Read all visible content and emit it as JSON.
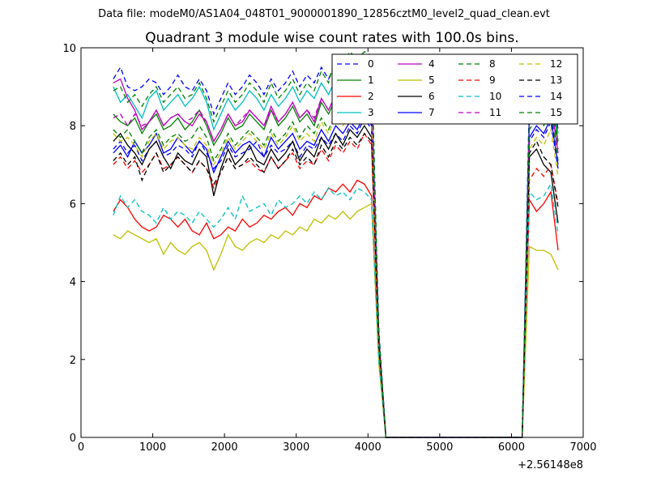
{
  "chart_data": {
    "type": "line",
    "suptitle": "Data file: modeM0/AS1A04_048T01_9000001890_12856cztM0_level2_quad_clean.evt",
    "title": "Quadrant 3 module wise count rates with 100.0s bins.",
    "xlabel": "",
    "ylabel": "",
    "x_offset_label": "+2.56148e8",
    "xlim": [
      0,
      7000
    ],
    "ylim": [
      0,
      10
    ],
    "xticks": [
      0,
      1000,
      2000,
      3000,
      4000,
      5000,
      6000,
      7000
    ],
    "yticks": [
      0,
      2,
      4,
      6,
      8,
      10
    ],
    "x": [
      450,
      550,
      650,
      750,
      850,
      950,
      1050,
      1150,
      1250,
      1350,
      1450,
      1550,
      1650,
      1750,
      1850,
      1950,
      2050,
      2150,
      2250,
      2350,
      2450,
      2550,
      2650,
      2750,
      2850,
      2950,
      3050,
      3150,
      3250,
      3350,
      3450,
      3550,
      3650,
      3750,
      3850,
      3950,
      4050,
      4150,
      4250,
      4350,
      4450,
      4550,
      4650,
      4750,
      4850,
      4950,
      5050,
      5150,
      5250,
      5350,
      5450,
      5550,
      5650,
      5750,
      5850,
      5950,
      6050,
      6150,
      6250,
      6350,
      6450,
      6550,
      6650
    ],
    "legend": {
      "location": "top-right",
      "ncol": 4
    },
    "series": [
      {
        "name": "0",
        "color": "#0000ff",
        "dash": "6,4",
        "values": [
          7.4,
          7.6,
          7.3,
          7.5,
          7.1,
          7.4,
          7.6,
          7.2,
          7.3,
          7.5,
          7.4,
          7.2,
          7.6,
          7.3,
          6.9,
          7.1,
          7.5,
          7.2,
          7.3,
          7.4,
          7.6,
          7.2,
          7.5,
          7.3,
          7.4,
          7.6,
          7.2,
          7.5,
          7.4,
          7.7,
          7.5,
          7.8,
          7.6,
          8.0,
          7.8,
          8.2,
          7.9,
          2.5,
          0,
          0,
          0,
          0,
          0,
          0,
          0,
          0,
          0,
          0,
          0,
          0,
          0,
          0,
          0,
          0,
          0,
          0,
          0,
          0,
          7.6,
          7.9,
          7.7,
          8.1,
          6.9
        ]
      },
      {
        "name": "1",
        "color": "#008000",
        "dash": "",
        "values": [
          8.3,
          8.1,
          8.0,
          8.2,
          7.8,
          8.1,
          8.3,
          7.9,
          8.0,
          8.2,
          7.9,
          8.1,
          8.4,
          8.0,
          7.5,
          7.8,
          8.2,
          7.9,
          8.0,
          8.3,
          8.1,
          7.9,
          8.4,
          8.0,
          8.2,
          8.5,
          8.1,
          8.3,
          8.0,
          8.6,
          8.3,
          8.7,
          8.5,
          8.8,
          8.6,
          9.0,
          8.7,
          2.6,
          0,
          0,
          0,
          0,
          0,
          0,
          0,
          0,
          0,
          0,
          0,
          0,
          0,
          0,
          0,
          0,
          0,
          0,
          0,
          0,
          8.4,
          8.7,
          8.5,
          8.9,
          7.6
        ]
      },
      {
        "name": "2",
        "color": "#ff0000",
        "dash": "",
        "values": [
          5.8,
          6.1,
          5.9,
          5.6,
          5.4,
          5.3,
          5.4,
          5.7,
          5.6,
          5.4,
          5.6,
          5.3,
          5.2,
          5.5,
          5.1,
          5.2,
          5.4,
          5.3,
          5.6,
          5.4,
          5.5,
          5.7,
          5.6,
          5.8,
          5.9,
          5.7,
          6.0,
          5.9,
          6.2,
          6.1,
          6.4,
          6.3,
          6.5,
          6.3,
          6.6,
          6.5,
          6.2,
          2.1,
          0,
          0,
          0,
          0,
          0,
          0,
          0,
          0,
          0,
          0,
          0,
          0,
          0,
          0,
          0,
          0,
          0,
          0,
          0,
          0,
          6.1,
          5.8,
          6.0,
          6.3,
          4.8
        ]
      },
      {
        "name": "3",
        "color": "#00bfbf",
        "dash": "",
        "values": [
          9.0,
          8.6,
          8.8,
          8.5,
          8.2,
          8.7,
          8.9,
          8.4,
          8.6,
          8.8,
          8.5,
          8.7,
          9.0,
          8.6,
          7.9,
          8.3,
          8.7,
          8.4,
          8.6,
          8.9,
          8.7,
          8.4,
          8.8,
          8.5,
          8.7,
          9.0,
          8.6,
          8.9,
          8.7,
          9.1,
          8.8,
          9.2,
          9.0,
          9.3,
          9.1,
          9.5,
          9.2,
          2.7,
          0,
          0,
          0,
          0,
          0,
          0,
          0,
          0,
          0,
          0,
          0,
          0,
          0,
          0,
          0,
          0,
          0,
          0,
          0,
          0,
          8.7,
          9.0,
          8.8,
          9.1,
          7.8
        ]
      },
      {
        "name": "4",
        "color": "#bf00bf",
        "dash": "",
        "values": [
          9.1,
          9.2,
          8.7,
          8.4,
          7.9,
          8.1,
          8.4,
          8.0,
          8.2,
          8.3,
          8.1,
          8.0,
          8.3,
          8.1,
          7.6,
          7.9,
          8.3,
          8.0,
          8.1,
          8.4,
          8.2,
          8.0,
          8.5,
          8.1,
          8.3,
          8.6,
          8.2,
          8.4,
          8.1,
          8.7,
          8.4,
          8.8,
          8.6,
          8.9,
          8.7,
          9.0,
          8.6,
          2.6,
          0,
          0,
          0,
          0,
          0,
          0,
          0,
          0,
          0,
          0,
          0,
          0,
          0,
          0,
          0,
          0,
          0,
          0,
          0,
          0,
          8.2,
          8.5,
          8.3,
          8.6,
          7.3
        ]
      },
      {
        "name": "5",
        "color": "#bfbf00",
        "dash": "",
        "values": [
          5.2,
          5.1,
          5.3,
          5.2,
          5.1,
          5.0,
          5.1,
          4.7,
          5.0,
          4.8,
          4.7,
          4.9,
          5.0,
          4.8,
          4.3,
          4.7,
          5.2,
          4.9,
          4.8,
          5.0,
          5.1,
          5.0,
          5.2,
          5.1,
          5.3,
          5.2,
          5.4,
          5.3,
          5.6,
          5.5,
          5.7,
          5.6,
          5.8,
          5.6,
          5.8,
          5.9,
          6.0,
          1.9,
          0,
          0,
          0,
          0,
          0,
          0,
          0,
          0,
          0,
          0,
          0,
          0,
          0,
          0,
          0,
          0,
          0,
          0,
          0,
          0,
          4.9,
          4.8,
          4.8,
          4.7,
          4.3
        ]
      },
      {
        "name": "6",
        "color": "#000000",
        "dash": "",
        "values": [
          7.6,
          7.8,
          7.5,
          7.3,
          7.0,
          7.4,
          7.6,
          7.2,
          6.9,
          7.3,
          7.1,
          7.0,
          7.4,
          7.2,
          6.2,
          6.9,
          7.4,
          7.0,
          7.2,
          7.5,
          7.1,
          7.0,
          7.4,
          7.1,
          7.3,
          7.6,
          7.1,
          7.4,
          7.2,
          7.7,
          7.4,
          7.8,
          7.5,
          7.9,
          7.7,
          8.0,
          7.7,
          2.4,
          0,
          0,
          0,
          0,
          0,
          0,
          0,
          0,
          0,
          0,
          0,
          0,
          0,
          0,
          0,
          0,
          0,
          0,
          0,
          0,
          7.2,
          7.4,
          7.0,
          6.8,
          5.5
        ]
      },
      {
        "name": "7",
        "color": "#0000ff",
        "dash": "",
        "values": [
          7.3,
          7.5,
          7.2,
          7.6,
          7.3,
          7.5,
          7.8,
          7.3,
          7.4,
          7.7,
          7.5,
          7.3,
          7.6,
          7.4,
          6.8,
          7.2,
          7.6,
          7.3,
          7.5,
          7.6,
          7.4,
          7.2,
          7.7,
          7.4,
          7.6,
          7.8,
          7.4,
          7.6,
          7.5,
          7.9,
          7.6,
          8.0,
          7.8,
          8.1,
          7.9,
          8.3,
          8.0,
          2.5,
          0,
          0,
          0,
          0,
          0,
          0,
          0,
          0,
          0,
          0,
          0,
          0,
          0,
          0,
          0,
          0,
          0,
          0,
          0,
          0,
          7.7,
          8.0,
          7.8,
          8.2,
          7.0
        ]
      },
      {
        "name": "8",
        "color": "#008000",
        "dash": "6,4",
        "values": [
          7.9,
          7.7,
          7.9,
          7.6,
          7.3,
          7.7,
          7.9,
          7.5,
          7.7,
          7.8,
          7.6,
          7.7,
          8.0,
          7.7,
          7.1,
          7.4,
          7.8,
          7.5,
          7.7,
          7.9,
          7.7,
          7.5,
          7.9,
          7.6,
          7.8,
          8.1,
          7.7,
          8.0,
          7.8,
          8.2,
          7.9,
          8.3,
          8.1,
          8.4,
          8.2,
          8.6,
          8.3,
          2.5,
          0,
          0,
          0,
          0,
          0,
          0,
          0,
          0,
          0,
          0,
          0,
          0,
          0,
          0,
          0,
          0,
          0,
          0,
          0,
          0,
          7.9,
          8.2,
          8.0,
          8.4,
          7.1
        ]
      },
      {
        "name": "9",
        "color": "#ff0000",
        "dash": "6,4",
        "values": [
          7.0,
          7.2,
          6.9,
          7.1,
          6.8,
          7.0,
          7.3,
          6.9,
          7.0,
          7.2,
          7.0,
          6.8,
          7.1,
          6.9,
          6.4,
          6.8,
          7.2,
          6.9,
          7.0,
          7.1,
          6.9,
          6.8,
          7.2,
          6.9,
          7.1,
          7.3,
          6.9,
          7.1,
          7.0,
          7.4,
          7.1,
          7.5,
          7.3,
          7.6,
          7.4,
          7.8,
          7.5,
          2.4,
          0,
          0,
          0,
          0,
          0,
          0,
          0,
          0,
          0,
          0,
          0,
          0,
          0,
          0,
          0,
          0,
          0,
          0,
          0,
          0,
          6.6,
          6.9,
          6.7,
          7.0,
          6.0
        ]
      },
      {
        "name": "10",
        "color": "#00bfbf",
        "dash": "6,4",
        "values": [
          5.7,
          6.2,
          5.9,
          6.1,
          5.8,
          5.7,
          5.5,
          5.9,
          5.6,
          5.8,
          5.7,
          5.5,
          5.8,
          5.6,
          5.4,
          5.6,
          5.9,
          5.6,
          6.2,
          5.8,
          5.9,
          6.0,
          5.7,
          6.1,
          5.9,
          6.0,
          6.2,
          6.0,
          6.3,
          6.1,
          6.4,
          6.2,
          6.3,
          6.1,
          6.4,
          6.3,
          6.1,
          2.0,
          0,
          0,
          0,
          0,
          0,
          0,
          0,
          0,
          0,
          0,
          0,
          0,
          0,
          0,
          0,
          0,
          0,
          0,
          0,
          0,
          6.3,
          6.1,
          6.2,
          6.5,
          5.2
        ]
      },
      {
        "name": "11",
        "color": "#bf00bf",
        "dash": "6,4",
        "values": [
          8.2,
          8.3,
          8.0,
          8.3,
          8.0,
          8.1,
          8.4,
          8.0,
          8.2,
          8.3,
          8.1,
          8.2,
          8.4,
          8.1,
          7.6,
          7.9,
          8.3,
          8.0,
          8.2,
          8.4,
          8.2,
          8.0,
          8.4,
          8.1,
          8.3,
          8.6,
          8.2,
          8.4,
          8.2,
          8.7,
          8.4,
          8.8,
          8.6,
          8.9,
          8.7,
          9.0,
          8.7,
          2.6,
          0,
          0,
          0,
          0,
          0,
          0,
          0,
          0,
          0,
          0,
          0,
          0,
          0,
          0,
          0,
          0,
          0,
          0,
          0,
          0,
          8.1,
          8.4,
          8.2,
          8.5,
          7.4
        ]
      },
      {
        "name": "12",
        "color": "#bfbf00",
        "dash": "6,4",
        "values": [
          7.8,
          7.6,
          7.7,
          7.5,
          7.2,
          7.6,
          7.8,
          7.4,
          7.6,
          7.7,
          7.5,
          7.4,
          7.7,
          7.5,
          7.0,
          7.3,
          7.7,
          7.4,
          7.6,
          7.8,
          7.6,
          7.4,
          7.8,
          7.5,
          7.7,
          8.0,
          7.6,
          7.8,
          7.6,
          8.1,
          7.8,
          8.2,
          8.0,
          8.3,
          8.1,
          8.4,
          8.1,
          2.5,
          0,
          0,
          0,
          0,
          0,
          0,
          0,
          0,
          0,
          0,
          0,
          0,
          0,
          0,
          0,
          0,
          0,
          0,
          0,
          0,
          7.4,
          7.7,
          7.5,
          7.9,
          6.7
        ]
      },
      {
        "name": "13",
        "color": "#000000",
        "dash": "6,4",
        "values": [
          7.1,
          7.3,
          7.0,
          7.2,
          6.6,
          7.0,
          7.3,
          6.8,
          7.0,
          7.2,
          7.0,
          6.8,
          7.1,
          6.9,
          6.5,
          6.8,
          7.2,
          6.9,
          7.0,
          7.2,
          7.0,
          6.8,
          7.2,
          6.9,
          7.1,
          7.4,
          7.0,
          7.2,
          7.0,
          7.5,
          7.2,
          7.6,
          7.4,
          7.7,
          7.5,
          7.8,
          7.6,
          2.4,
          0,
          0,
          0,
          0,
          0,
          0,
          0,
          0,
          0,
          0,
          0,
          0,
          0,
          0,
          0,
          0,
          0,
          0,
          0,
          0,
          7.3,
          7.6,
          7.2,
          7.0,
          5.9
        ]
      },
      {
        "name": "14",
        "color": "#0000ff",
        "dash": "6,4",
        "values": [
          9.2,
          9.5,
          9.0,
          8.9,
          9.0,
          9.2,
          9.1,
          8.8,
          9.0,
          9.3,
          9.0,
          8.9,
          9.2,
          8.9,
          8.3,
          8.7,
          9.1,
          8.8,
          9.0,
          9.3,
          9.1,
          8.8,
          9.2,
          8.9,
          9.1,
          9.4,
          9.0,
          9.3,
          9.1,
          9.5,
          9.2,
          9.6,
          9.4,
          9.7,
          9.5,
          9.8,
          9.5,
          2.8,
          0,
          0,
          0,
          0,
          0,
          0,
          0,
          0,
          0,
          0,
          0,
          0,
          0,
          0,
          0,
          0,
          0,
          0,
          0,
          0,
          8.8,
          9.1,
          8.9,
          9.2,
          7.9
        ]
      },
      {
        "name": "15",
        "color": "#008000",
        "dash": "6,4",
        "values": [
          8.9,
          9.0,
          8.6,
          8.8,
          8.5,
          8.8,
          9.0,
          8.6,
          8.8,
          9.0,
          8.7,
          8.8,
          9.1,
          8.7,
          8.1,
          8.5,
          8.9,
          8.6,
          8.8,
          9.1,
          8.9,
          8.6,
          9.1,
          8.7,
          8.9,
          9.2,
          8.8,
          9.1,
          8.9,
          9.4,
          9.1,
          9.8,
          9.6,
          9.9,
          9.7,
          9.9,
          9.8,
          2.7,
          0,
          0,
          0,
          0,
          0,
          0,
          0,
          0,
          0,
          0,
          0,
          0,
          0,
          0,
          0,
          0,
          0,
          0,
          0,
          0,
          8.3,
          8.6,
          8.4,
          8.7,
          7.5
        ]
      }
    ]
  }
}
